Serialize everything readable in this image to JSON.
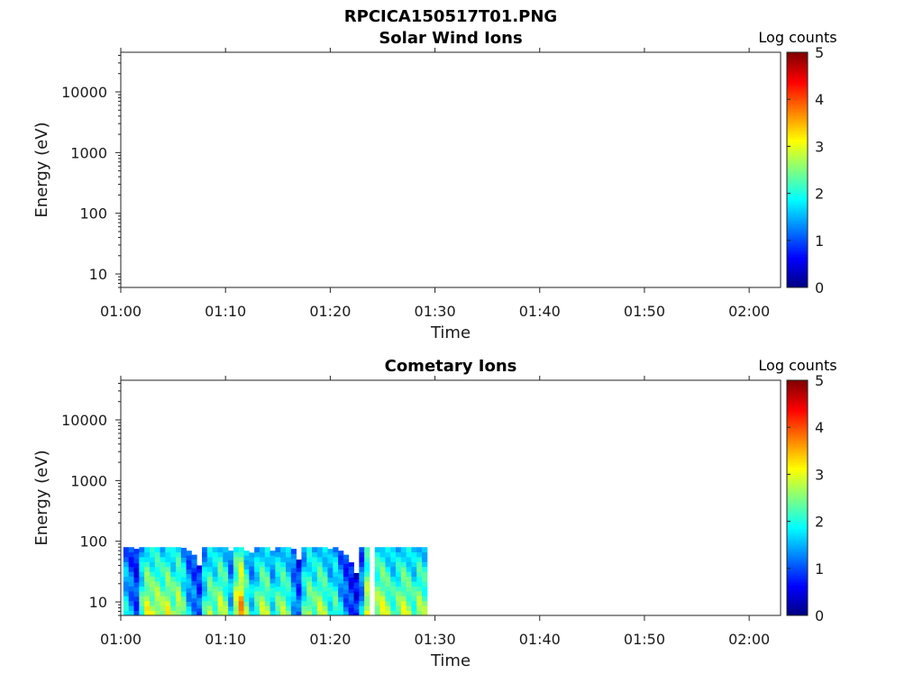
{
  "figure_title": "RPCICA150517T01.PNG",
  "chart_data": [
    {
      "type": "heatmap",
      "title": "Solar Wind Ions",
      "xlabel": "Time",
      "ylabel": "Energy (eV)",
      "x_range": [
        "01:00",
        "02:03"
      ],
      "x_ticks": [
        "01:00",
        "01:10",
        "01:20",
        "01:30",
        "01:40",
        "01:50",
        "02:00"
      ],
      "y_scale": "log",
      "y_range": [
        6,
        45000
      ],
      "y_ticks": [
        "10",
        "100",
        "1000",
        "10000"
      ],
      "colorbar": {
        "label": "Log counts",
        "range": [
          0,
          5
        ],
        "ticks": [
          "0",
          "1",
          "2",
          "3",
          "4",
          "5"
        ],
        "colormap": "jet"
      },
      "data": {
        "columns": []
      }
    },
    {
      "type": "heatmap",
      "title": "Cometary Ions",
      "xlabel": "Time",
      "ylabel": "Energy (eV)",
      "x_range": [
        "01:00",
        "02:03"
      ],
      "x_ticks": [
        "01:00",
        "01:10",
        "01:20",
        "01:30",
        "01:40",
        "01:50",
        "02:00"
      ],
      "y_scale": "log",
      "y_range": [
        6,
        45000
      ],
      "y_ticks": [
        "10",
        "100",
        "1000",
        "10000"
      ],
      "colorbar": {
        "label": "Log counts",
        "range": [
          0,
          5
        ],
        "ticks": [
          "0",
          "1",
          "2",
          "3",
          "4",
          "5"
        ],
        "colormap": "jet"
      },
      "data": {
        "time_span": [
          "01:00",
          "01:29"
        ],
        "energy_span": [
          6,
          80
        ],
        "columns": [
          {
            "t": "01:00.5",
            "e_max": 80,
            "level": 1.6
          },
          {
            "t": "01:01.0",
            "e_max": 80,
            "level": 1.2
          },
          {
            "t": "01:01.5",
            "e_max": 75,
            "level": 0.9
          },
          {
            "t": "01:02.0",
            "e_max": 80,
            "level": 2.0
          },
          {
            "t": "01:02.5",
            "e_max": 80,
            "level": 2.6
          },
          {
            "t": "01:03.0",
            "e_max": 80,
            "level": 2.4
          },
          {
            "t": "01:03.5",
            "e_max": 80,
            "level": 2.5
          },
          {
            "t": "01:04.0",
            "e_max": 80,
            "level": 2.3
          },
          {
            "t": "01:04.5",
            "e_max": 80,
            "level": 2.6
          },
          {
            "t": "01:05.0",
            "e_max": 80,
            "level": 2.2
          },
          {
            "t": "01:05.5",
            "e_max": 80,
            "level": 2.5
          },
          {
            "t": "01:06.0",
            "e_max": 78,
            "level": 2.0
          },
          {
            "t": "01:06.5",
            "e_max": 70,
            "level": 1.4
          },
          {
            "t": "01:07.0",
            "e_max": 60,
            "level": 1.2
          },
          {
            "t": "01:07.5",
            "e_max": 40,
            "level": 1.0
          },
          {
            "t": "01:08.0",
            "e_max": 80,
            "level": 1.8
          },
          {
            "t": "01:08.5",
            "e_max": 80,
            "level": 2.3
          },
          {
            "t": "01:09.0",
            "e_max": 80,
            "level": 2.1
          },
          {
            "t": "01:09.5",
            "e_max": 80,
            "level": 2.5
          },
          {
            "t": "01:10.0",
            "e_max": 80,
            "level": 2.2
          },
          {
            "t": "01:10.5",
            "e_max": 70,
            "level": 1.5
          },
          {
            "t": "01:11.0",
            "e_max": 80,
            "level": 2.6
          },
          {
            "t": "01:11.5",
            "e_max": 80,
            "level": 3.2
          },
          {
            "t": "01:12.0",
            "e_max": 70,
            "level": 2.2
          },
          {
            "t": "01:12.5",
            "e_max": 65,
            "level": 1.6
          },
          {
            "t": "01:13.0",
            "e_max": 80,
            "level": 2.0
          },
          {
            "t": "01:13.5",
            "e_max": 80,
            "level": 2.4
          },
          {
            "t": "01:14.0",
            "e_max": 80,
            "level": 2.3
          },
          {
            "t": "01:14.5",
            "e_max": 70,
            "level": 1.7
          },
          {
            "t": "01:15.0",
            "e_max": 80,
            "level": 2.1
          },
          {
            "t": "01:15.5",
            "e_max": 80,
            "level": 2.3
          },
          {
            "t": "01:16.0",
            "e_max": 80,
            "level": 2.0
          },
          {
            "t": "01:16.5",
            "e_max": 75,
            "level": 1.4
          },
          {
            "t": "01:17.0",
            "e_max": 50,
            "level": 1.0
          },
          {
            "t": "01:17.5",
            "e_max": 80,
            "level": 1.9
          },
          {
            "t": "01:18.0",
            "e_max": 80,
            "level": 2.3
          },
          {
            "t": "01:18.5",
            "e_max": 80,
            "level": 2.1
          },
          {
            "t": "01:19.0",
            "e_max": 80,
            "level": 2.4
          },
          {
            "t": "01:19.5",
            "e_max": 80,
            "level": 2.2
          },
          {
            "t": "01:20.0",
            "e_max": 75,
            "level": 1.8
          },
          {
            "t": "01:20.5",
            "e_max": 80,
            "level": 2.0
          },
          {
            "t": "01:21.0",
            "e_max": 70,
            "level": 1.5
          },
          {
            "t": "01:21.5",
            "e_max": 60,
            "level": 1.1
          },
          {
            "t": "01:22.0",
            "e_max": 45,
            "level": 0.9
          },
          {
            "t": "01:22.5",
            "e_max": 30,
            "level": 0.7
          },
          {
            "t": "01:23.0",
            "e_max": 80,
            "level": 1.3
          },
          {
            "t": "01:23.5",
            "e_max": 80,
            "level": 2.6
          },
          {
            "t": "01:24.5",
            "e_max": 80,
            "level": 2.4
          },
          {
            "t": "01:25.0",
            "e_max": 80,
            "level": 2.6
          },
          {
            "t": "01:25.5",
            "e_max": 80,
            "level": 2.3
          },
          {
            "t": "01:26.0",
            "e_max": 80,
            "level": 2.0
          },
          {
            "t": "01:26.5",
            "e_max": 80,
            "level": 2.2
          },
          {
            "t": "01:27.0",
            "e_max": 80,
            "level": 2.5
          },
          {
            "t": "01:27.5",
            "e_max": 80,
            "level": 2.3
          },
          {
            "t": "01:28.0",
            "e_max": 80,
            "level": 2.0
          },
          {
            "t": "01:28.5",
            "e_max": 80,
            "level": 2.4
          },
          {
            "t": "01:29.0",
            "e_max": 80,
            "level": 2.2
          }
        ]
      }
    }
  ]
}
